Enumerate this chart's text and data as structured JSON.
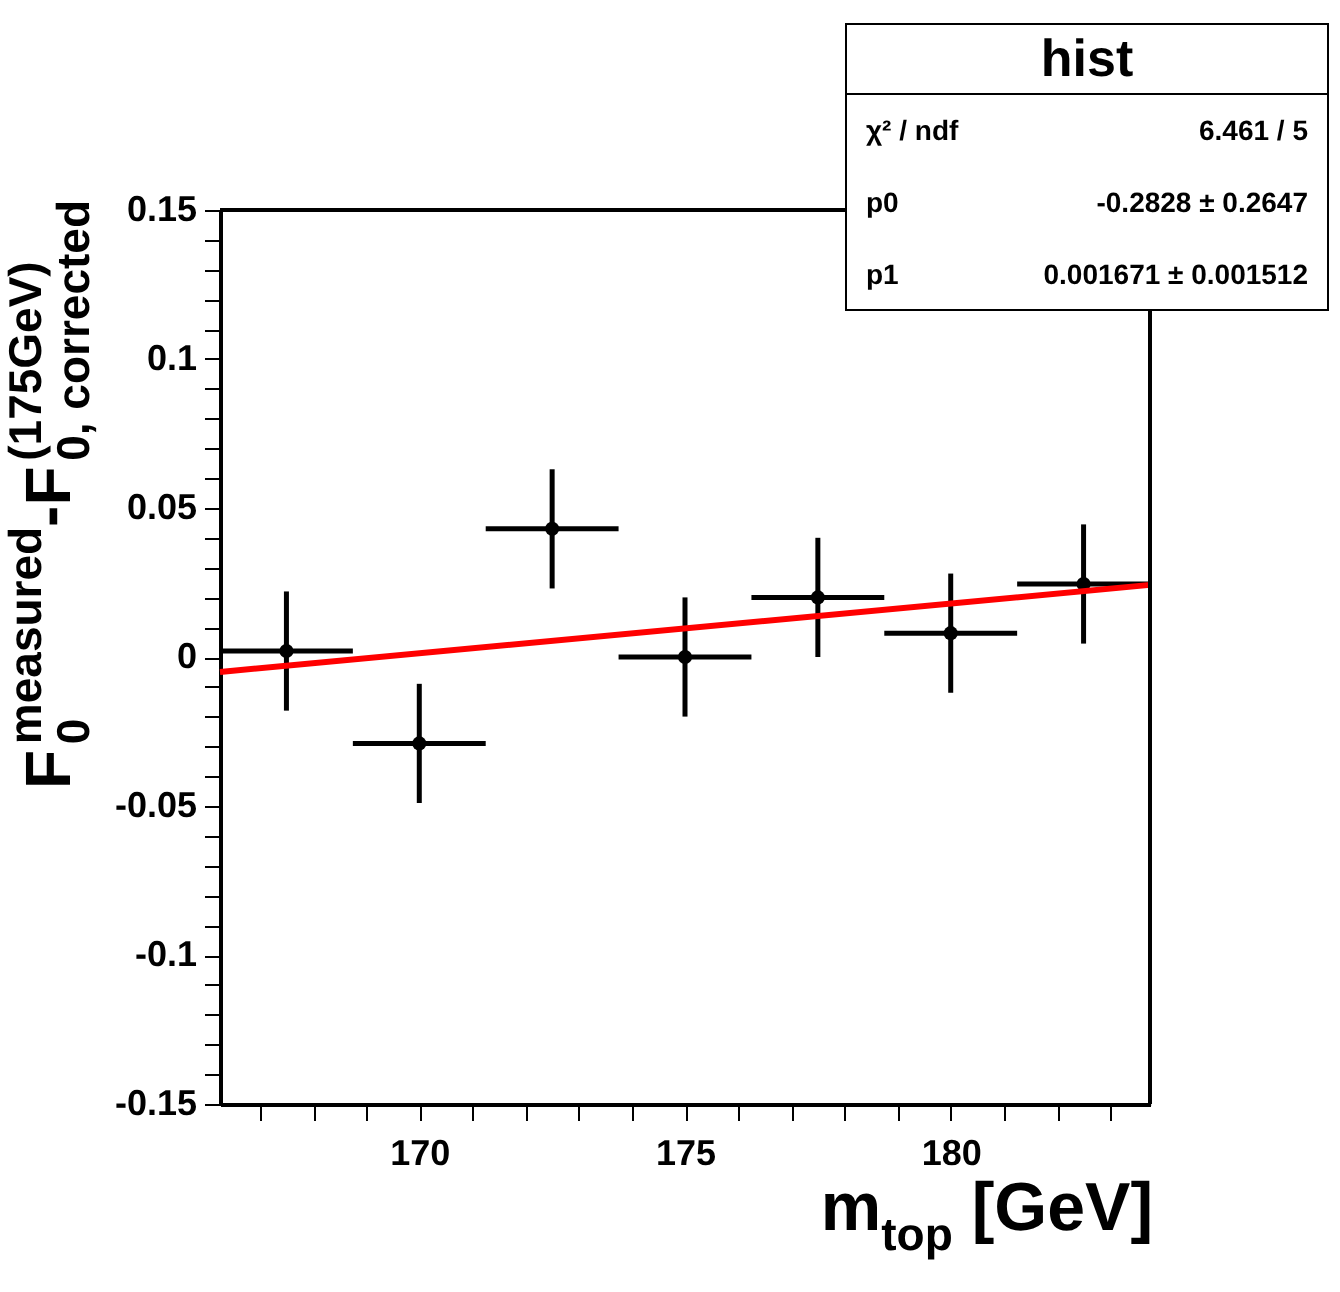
{
  "chart_data": {
    "type": "scatter",
    "title": "hist",
    "xlabel": "m$_{top}$ [GeV]",
    "ylabel": "F$_{0}$$^{measured}$-F$_{0, corrected}$$^{(175GeV)}$",
    "annotations": [
      "χ² / ndf",
      "6.461 / 5",
      "p0",
      "-0.2828 ± 0.2647",
      "p1",
      "0.001671 ± 0.001512"
    ],
    "xlim": [
      166.25,
      183.75
    ],
    "ylim": [
      -0.15,
      0.15
    ],
    "xticks": [
      {
        "value": 167,
        "label": null
      },
      {
        "value": 168,
        "label": null
      },
      {
        "value": 169,
        "label": null
      },
      170,
      {
        "value": 171,
        "label": null
      },
      {
        "value": 172,
        "label": null
      },
      {
        "value": 173,
        "label": null
      },
      {
        "value": 174,
        "label": null
      },
      175,
      {
        "value": 176,
        "label": null
      },
      {
        "value": 177,
        "label": null
      },
      {
        "value": 178,
        "label": null
      },
      {
        "value": 179,
        "label": null
      },
      180,
      {
        "value": 181,
        "label": null
      },
      {
        "value": 182,
        "label": null
      },
      {
        "value": 183,
        "label": null
      }
    ],
    "yticks": [
      -0.15,
      {
        "value": -0.14,
        "label": null
      },
      {
        "value": -0.13,
        "label": null
      },
      {
        "value": -0.12,
        "label": null
      },
      {
        "value": -0.11,
        "label": null
      },
      -0.1,
      {
        "value": -0.09,
        "label": null
      },
      {
        "value": -0.08,
        "label": null
      },
      {
        "value": -0.07,
        "label": null
      },
      {
        "value": -0.06,
        "label": null
      },
      -0.05,
      {
        "value": -0.04,
        "label": null
      },
      {
        "value": -0.03,
        "label": null
      },
      {
        "value": -0.02,
        "label": null
      },
      {
        "value": -0.01,
        "label": null
      },
      0,
      {
        "value": 0.01,
        "label": null
      },
      {
        "value": 0.02,
        "label": null
      },
      {
        "value": 0.03,
        "label": null
      },
      {
        "value": 0.04,
        "label": null
      },
      0.05,
      {
        "value": 0.06,
        "label": null
      },
      {
        "value": 0.07,
        "label": null
      },
      {
        "value": 0.08,
        "label": null
      },
      {
        "value": 0.09,
        "label": null
      },
      0.1,
      {
        "value": 0.11,
        "label": null
      },
      {
        "value": 0.12,
        "label": null
      },
      {
        "value": 0.13,
        "label": null
      },
      {
        "value": 0.14,
        "label": null
      },
      0.15
    ],
    "grid": false,
    "series": [
      {
        "type": "scatter",
        "marker": "circle",
        "color": "#000000",
        "x": [
          167.5,
          170,
          172.5,
          175,
          177.5,
          180,
          182.5
        ],
        "values": [
          0.002,
          -0.029,
          0.043,
          0.0,
          0.02,
          0.008,
          0.0245
        ],
        "errors": [
          0.02,
          0.02,
          0.02,
          0.02,
          0.02,
          0.02,
          0.02
        ],
        "xerrors": [
          1.25,
          1.25,
          1.25,
          1.25,
          1.25,
          1.25,
          1.25
        ]
      },
      {
        "type": "line",
        "color": "#ff0000",
        "x": [
          166.25,
          183.75
        ],
        "values": [
          -0.005,
          0.0242
        ],
        "line_style": "solid",
        "marker": "none"
      }
    ]
  }
}
